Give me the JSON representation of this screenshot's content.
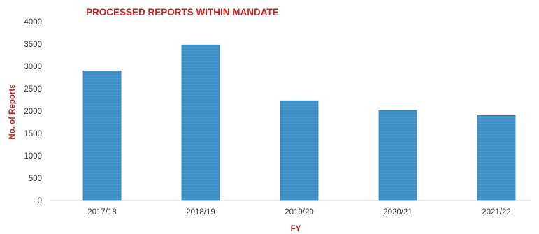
{
  "chart_data": {
    "type": "bar",
    "title": "PROCESSED REPORTS WITHIN MANDATE",
    "xlabel": "FY",
    "ylabel": "No. of Reports",
    "categories": [
      "2017/18",
      "2018/19",
      "2019/20",
      "2020/21",
      "2021/22"
    ],
    "values": [
      2900,
      3480,
      2230,
      2010,
      1900
    ],
    "ylim": [
      0,
      4000
    ],
    "yticks": [
      0,
      500,
      1000,
      1500,
      2000,
      2500,
      3000,
      3500,
      4000
    ],
    "grid": false,
    "legend": "none",
    "colors": {
      "bar": "#3a8fc6",
      "bar_dark": "#2e7db5",
      "title": "#c8201f",
      "axis_label": "#b02323"
    }
  }
}
